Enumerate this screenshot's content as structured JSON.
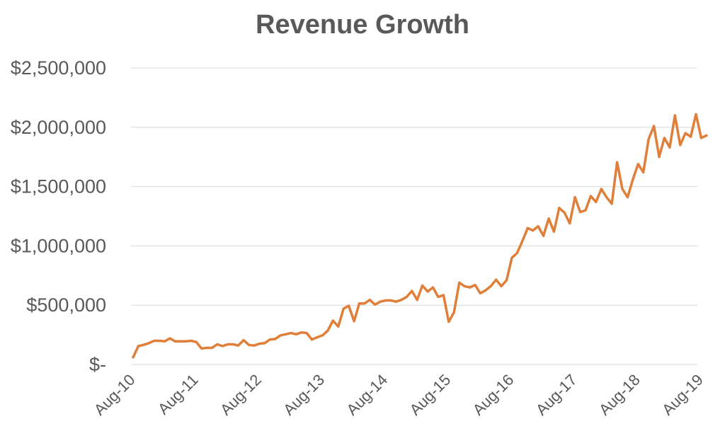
{
  "chart_data": {
    "type": "line",
    "title": "Revenue Growth",
    "xlabel": "",
    "ylabel": "",
    "ylim": [
      0,
      2500000
    ],
    "grid": true,
    "legend": "none",
    "line_color": "#E07F3A",
    "y_ticks": [
      {
        "value": 0,
        "label": "$-"
      },
      {
        "value": 500000,
        "label": "$500,000"
      },
      {
        "value": 1000000,
        "label": "$1,000,000"
      },
      {
        "value": 1500000,
        "label": "$1,500,000"
      },
      {
        "value": 2000000,
        "label": "$2,000,000"
      },
      {
        "value": 2500000,
        "label": "$2,500,000"
      }
    ],
    "x_ticks": [
      {
        "index": 0,
        "label": "Aug-10"
      },
      {
        "index": 12,
        "label": "Aug-11"
      },
      {
        "index": 24,
        "label": "Aug-12"
      },
      {
        "index": 36,
        "label": "Aug-13"
      },
      {
        "index": 48,
        "label": "Aug-14"
      },
      {
        "index": 60,
        "label": "Aug-15"
      },
      {
        "index": 72,
        "label": "Aug-16"
      },
      {
        "index": 84,
        "label": "Aug-17"
      },
      {
        "index": 96,
        "label": "Aug-18"
      },
      {
        "index": 108,
        "label": "Aug-19"
      }
    ],
    "series": [
      {
        "values": [
          60000,
          155000,
          165000,
          180000,
          200000,
          200000,
          195000,
          220000,
          195000,
          195000,
          195000,
          200000,
          190000,
          135000,
          140000,
          140000,
          170000,
          155000,
          170000,
          170000,
          160000,
          205000,
          165000,
          160000,
          175000,
          180000,
          210000,
          215000,
          245000,
          255000,
          265000,
          255000,
          270000,
          265000,
          210000,
          230000,
          245000,
          285000,
          370000,
          320000,
          470000,
          495000,
          365000,
          515000,
          515000,
          545000,
          505000,
          530000,
          540000,
          540000,
          530000,
          545000,
          570000,
          620000,
          545000,
          665000,
          615000,
          650000,
          570000,
          585000,
          360000,
          440000,
          690000,
          660000,
          650000,
          670000,
          600000,
          625000,
          660000,
          715000,
          660000,
          710000,
          900000,
          940000,
          1040000,
          1150000,
          1130000,
          1165000,
          1085000,
          1230000,
          1120000,
          1320000,
          1280000,
          1190000,
          1410000,
          1285000,
          1300000,
          1420000,
          1370000,
          1480000,
          1410000,
          1355000,
          1705000,
          1480000,
          1410000,
          1560000,
          1690000,
          1620000,
          1900000,
          2010000,
          1750000,
          1910000,
          1830000,
          2100000,
          1850000,
          1950000,
          1920000,
          2110000,
          1910000,
          1930000
        ]
      }
    ]
  }
}
